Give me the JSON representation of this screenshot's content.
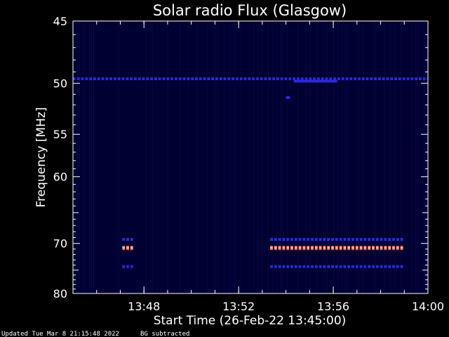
{
  "chart_data": {
    "type": "heatmap",
    "title": "Solar radio Flux (Glasgow)",
    "xlabel": "Start Time (26-Feb-22 13:45:00)",
    "ylabel": "Frequency [MHz]",
    "xlim": [
      "13:45:00",
      "14:00:00"
    ],
    "ylim": [
      80,
      45
    ],
    "xticks": [
      "13:48",
      "13:52",
      "13:56",
      "14:00"
    ],
    "yticks": [
      45,
      50,
      55,
      60,
      70,
      80
    ],
    "background_color": "#000033",
    "features": [
      {
        "freq_mhz": 49.6,
        "start": "13:45:00",
        "end": "14:00:00",
        "intensity": "low",
        "color": "#2a2ad8",
        "pattern": "dashed"
      },
      {
        "freq_mhz": 49.8,
        "start": "13:54:20",
        "end": "13:56:10",
        "intensity": "low",
        "color": "#2a2ad8",
        "pattern": "solid"
      },
      {
        "freq_mhz": 51.3,
        "start": "13:54:00",
        "end": "13:54:10",
        "intensity": "low",
        "color": "#2a2ad8",
        "pattern": "solid"
      },
      {
        "freq_mhz": 69.3,
        "start": "13:47:05",
        "end": "13:47:35",
        "intensity": "low",
        "color": "#2a2ad8",
        "pattern": "dashed"
      },
      {
        "freq_mhz": 69.3,
        "start": "13:53:20",
        "end": "13:59:00",
        "intensity": "low",
        "color": "#2a2ad8",
        "pattern": "dashed"
      },
      {
        "freq_mhz": 70.8,
        "start": "13:47:05",
        "end": "13:47:35",
        "intensity": "high",
        "color": "#ff3a1a",
        "pattern": "dashed"
      },
      {
        "freq_mhz": 70.8,
        "start": "13:53:20",
        "end": "13:59:00",
        "intensity": "high",
        "color": "#ff3a1a",
        "pattern": "dashed"
      },
      {
        "freq_mhz": 74.3,
        "start": "13:47:05",
        "end": "13:47:35",
        "intensity": "low",
        "color": "#2a2ad8",
        "pattern": "dashed"
      },
      {
        "freq_mhz": 74.3,
        "start": "13:53:20",
        "end": "13:59:00",
        "intensity": "low",
        "color": "#2a2ad8",
        "pattern": "dashed"
      }
    ],
    "grid": false
  },
  "footer": {
    "updated": "Updated Tue Mar  8 21:15:48 2022",
    "bg_note": "BG subtracted"
  }
}
